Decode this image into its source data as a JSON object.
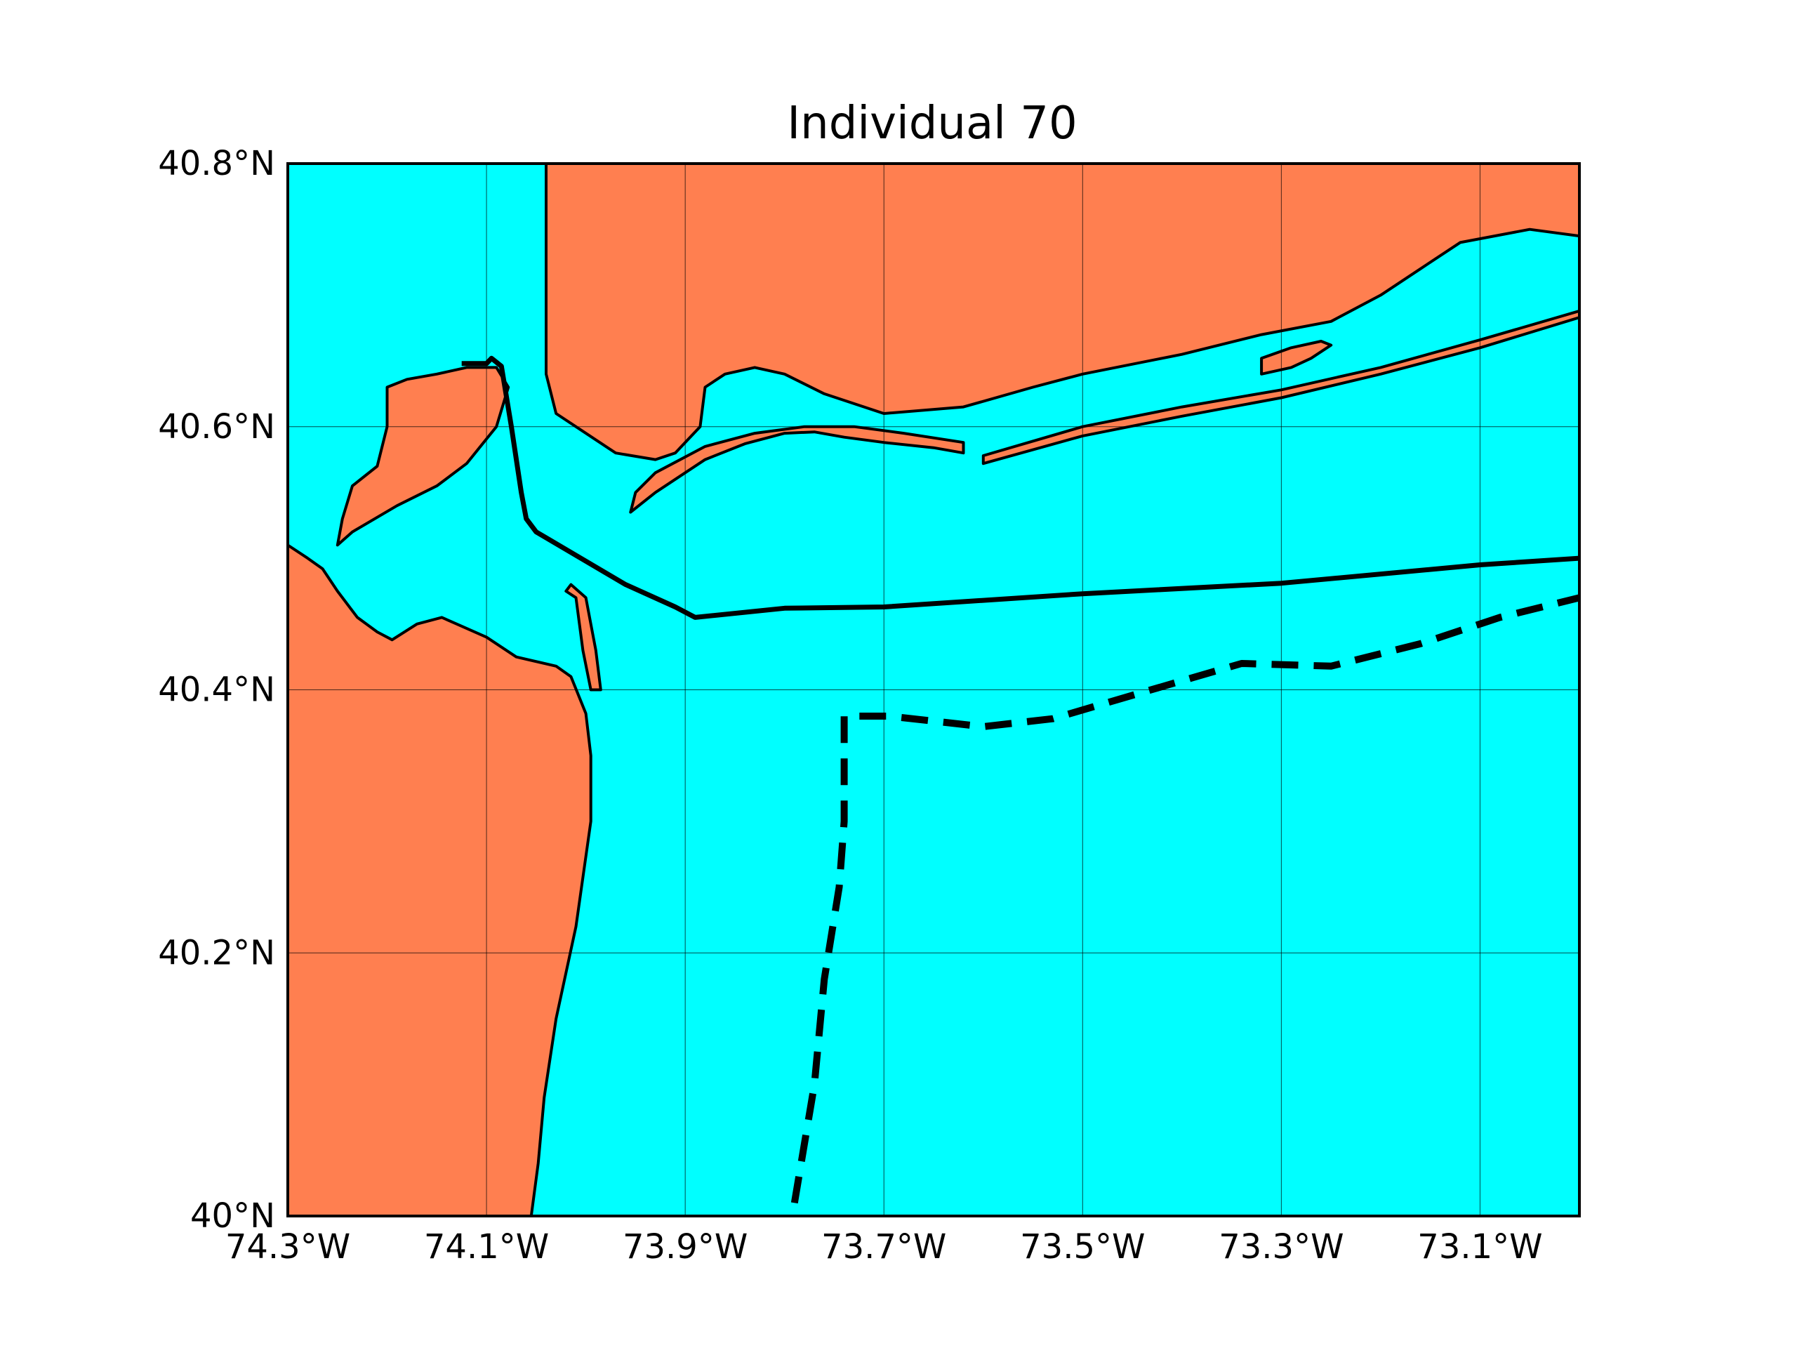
{
  "title": "Individual 70",
  "colors": {
    "land": "#ff7f50",
    "water": "#00ffff",
    "coastline": "#000000",
    "grid": "#000000"
  },
  "map_data": {
    "type": "map",
    "projection": "equirectangular",
    "lon_range": [
      -74.3,
      -73.0
    ],
    "lat_range": [
      40.0,
      40.8
    ],
    "grid": true,
    "lon_ticks": [
      {
        "value": -74.3,
        "label": "74.3°W"
      },
      {
        "value": -74.1,
        "label": "74.1°W"
      },
      {
        "value": -73.9,
        "label": "73.9°W"
      },
      {
        "value": -73.7,
        "label": "73.7°W"
      },
      {
        "value": -73.5,
        "label": "73.5°W"
      },
      {
        "value": -73.3,
        "label": "73.3°W"
      },
      {
        "value": -73.1,
        "label": "73.1°W"
      }
    ],
    "lat_ticks": [
      {
        "value": 40.0,
        "label": "40°N"
      },
      {
        "value": 40.2,
        "label": "40.2°N"
      },
      {
        "value": 40.4,
        "label": "40.4°N"
      },
      {
        "value": 40.6,
        "label": "40.6°N"
      },
      {
        "value": 40.8,
        "label": "40.8°N"
      }
    ],
    "routes": [
      {
        "style": "solid",
        "points": [
          [
            -74.125,
            40.648
          ],
          [
            -74.1,
            40.648
          ],
          [
            -74.095,
            40.652
          ],
          [
            -74.085,
            40.646
          ],
          [
            -74.075,
            40.6
          ],
          [
            -74.065,
            40.55
          ],
          [
            -74.06,
            40.53
          ],
          [
            -74.05,
            40.52
          ],
          [
            -73.96,
            40.48
          ],
          [
            -73.91,
            40.463
          ],
          [
            -73.89,
            40.455
          ],
          [
            -73.8,
            40.462
          ],
          [
            -73.7,
            40.463
          ],
          [
            -73.5,
            40.473
          ],
          [
            -73.3,
            40.481
          ],
          [
            -73.1,
            40.495
          ],
          [
            -73.0,
            40.5
          ]
        ]
      },
      {
        "style": "dashed",
        "points": [
          [
            -73.79,
            40.01
          ],
          [
            -73.77,
            40.1
          ],
          [
            -73.76,
            40.18
          ],
          [
            -73.745,
            40.25
          ],
          [
            -73.74,
            40.3
          ],
          [
            -73.74,
            40.38
          ],
          [
            -73.695,
            40.38
          ],
          [
            -73.6,
            40.372
          ],
          [
            -73.53,
            40.378
          ],
          [
            -73.44,
            40.398
          ],
          [
            -73.34,
            40.42
          ],
          [
            -73.25,
            40.418
          ],
          [
            -73.16,
            40.435
          ],
          [
            -73.08,
            40.455
          ],
          [
            -73.0,
            40.47
          ]
        ]
      }
    ],
    "land_polygons": [
      {
        "name": "new-jersey-mainland",
        "points": [
          [
            -74.3,
            40.8
          ],
          [
            -74.3,
            40.51
          ],
          [
            -74.28,
            40.5
          ],
          [
            -74.265,
            40.492
          ],
          [
            -74.25,
            40.475
          ],
          [
            -74.23,
            40.455
          ],
          [
            -74.21,
            40.444
          ],
          [
            -74.195,
            40.438
          ],
          [
            -74.17,
            40.45
          ],
          [
            -74.145,
            40.455
          ],
          [
            -74.1,
            40.44
          ],
          [
            -74.07,
            40.425
          ],
          [
            -74.03,
            40.418
          ],
          [
            -74.015,
            40.41
          ],
          [
            -74.0,
            40.382
          ],
          [
            -73.995,
            40.35
          ],
          [
            -73.995,
            40.3
          ],
          [
            -74.01,
            40.22
          ],
          [
            -74.03,
            40.15
          ],
          [
            -74.042,
            40.09
          ],
          [
            -74.048,
            40.04
          ],
          [
            -74.055,
            40.0
          ],
          [
            -74.3,
            40.0
          ]
        ]
      },
      {
        "name": "sandy-hook-spit",
        "points": [
          [
            -74.003,
            40.43
          ],
          [
            -74.01,
            40.47
          ],
          [
            -74.02,
            40.475
          ],
          [
            -74.015,
            40.48
          ],
          [
            -74.0,
            40.47
          ],
          [
            -73.99,
            40.43
          ],
          [
            -73.985,
            40.4
          ],
          [
            -73.995,
            40.4
          ]
        ]
      },
      {
        "name": "staten-island",
        "points": [
          [
            -74.25,
            40.51
          ],
          [
            -74.235,
            40.52
          ],
          [
            -74.19,
            40.54
          ],
          [
            -74.15,
            40.555
          ],
          [
            -74.12,
            40.572
          ],
          [
            -74.09,
            40.6
          ],
          [
            -74.078,
            40.63
          ],
          [
            -74.09,
            40.645
          ],
          [
            -74.12,
            40.645
          ],
          [
            -74.15,
            40.64
          ],
          [
            -74.18,
            40.636
          ],
          [
            -74.2,
            40.63
          ],
          [
            -74.2,
            40.6
          ],
          [
            -74.21,
            40.57
          ],
          [
            -74.235,
            40.555
          ],
          [
            -74.245,
            40.53
          ]
        ]
      },
      {
        "name": "long-island-brooklyn-queens",
        "points": [
          [
            -74.04,
            40.8
          ],
          [
            -74.04,
            40.64
          ],
          [
            -74.03,
            40.61
          ],
          [
            -74.0,
            40.595
          ],
          [
            -73.97,
            40.58
          ],
          [
            -73.93,
            40.575
          ],
          [
            -73.91,
            40.58
          ],
          [
            -73.885,
            40.6
          ],
          [
            -73.88,
            40.63
          ],
          [
            -73.86,
            40.64
          ],
          [
            -73.83,
            40.645
          ],
          [
            -73.8,
            40.64
          ],
          [
            -73.76,
            40.625
          ],
          [
            -73.7,
            40.61
          ],
          [
            -73.62,
            40.615
          ],
          [
            -73.55,
            40.63
          ],
          [
            -73.5,
            40.64
          ],
          [
            -73.4,
            40.655
          ],
          [
            -73.32,
            40.67
          ],
          [
            -73.25,
            40.68
          ],
          [
            -73.2,
            40.7
          ],
          [
            -73.16,
            40.72
          ],
          [
            -73.12,
            40.74
          ],
          [
            -73.05,
            40.75
          ],
          [
            -73.0,
            40.745
          ],
          [
            -73.0,
            40.8
          ]
        ]
      },
      {
        "name": "long-beach-barrier",
        "points": [
          [
            -73.955,
            40.535
          ],
          [
            -73.93,
            40.55
          ],
          [
            -73.88,
            40.575
          ],
          [
            -73.84,
            40.587
          ],
          [
            -73.8,
            40.595
          ],
          [
            -73.77,
            40.596
          ],
          [
            -73.74,
            40.592
          ],
          [
            -73.7,
            40.588
          ],
          [
            -73.65,
            40.584
          ],
          [
            -73.62,
            40.58
          ],
          [
            -73.62,
            40.588
          ],
          [
            -73.68,
            40.595
          ],
          [
            -73.73,
            40.6
          ],
          [
            -73.78,
            40.6
          ],
          [
            -73.83,
            40.595
          ],
          [
            -73.88,
            40.585
          ],
          [
            -73.93,
            40.565
          ],
          [
            -73.95,
            40.55
          ]
        ]
      },
      {
        "name": "fire-island-barrier",
        "points": [
          [
            -73.6,
            40.578
          ],
          [
            -73.5,
            40.6
          ],
          [
            -73.4,
            40.615
          ],
          [
            -73.3,
            40.628
          ],
          [
            -73.2,
            40.645
          ],
          [
            -73.1,
            40.666
          ],
          [
            -73.0,
            40.688
          ],
          [
            -73.0,
            40.683
          ],
          [
            -73.1,
            40.66
          ],
          [
            -73.2,
            40.64
          ],
          [
            -73.3,
            40.622
          ],
          [
            -73.4,
            40.608
          ],
          [
            -73.5,
            40.593
          ],
          [
            -73.6,
            40.572
          ]
        ]
      },
      {
        "name": "great-south-bay-island",
        "points": [
          [
            -73.32,
            40.64
          ],
          [
            -73.29,
            40.645
          ],
          [
            -73.27,
            40.652
          ],
          [
            -73.25,
            40.662
          ],
          [
            -73.26,
            40.665
          ],
          [
            -73.29,
            40.66
          ],
          [
            -73.32,
            40.652
          ]
        ]
      }
    ]
  }
}
